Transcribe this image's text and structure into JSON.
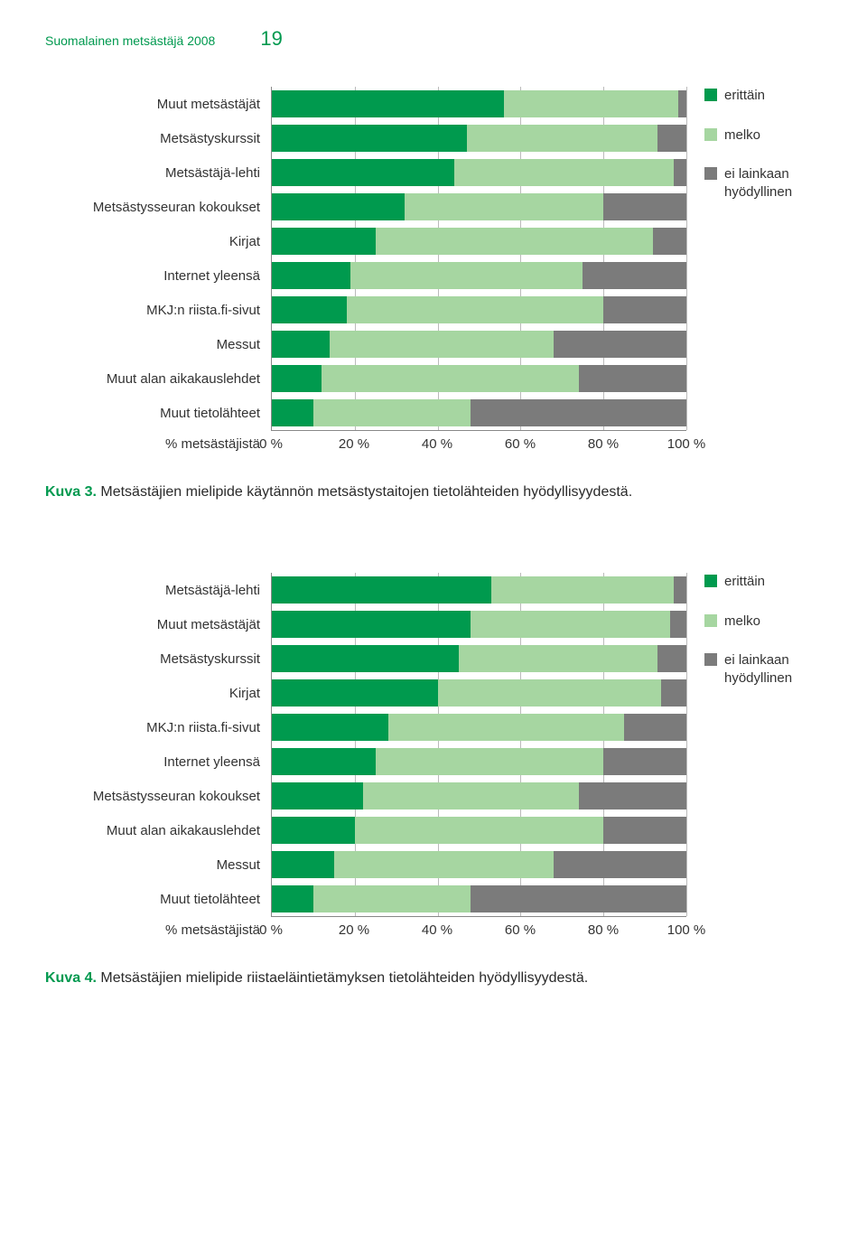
{
  "header": {
    "title": "Suomalainen metsästäjä 2008",
    "page_number": "19"
  },
  "colors": {
    "very": "#009a4e",
    "somewhat": "#a6d6a1",
    "not": "#7b7b7b",
    "gridline": "#bbbbbb",
    "text": "#333333"
  },
  "legend": {
    "items": [
      {
        "key": "very",
        "label": "erittäin"
      },
      {
        "key": "somewhat",
        "label": "melko"
      },
      {
        "key": "not",
        "label": "ei lainkaan hyödyllinen"
      }
    ]
  },
  "axis": {
    "label": "% metsästäjistä",
    "ticks": [
      "0 %",
      "20 %",
      "40 %",
      "60 %",
      "80 %",
      "100 %"
    ],
    "tick_positions": [
      0,
      20,
      40,
      60,
      80,
      100
    ]
  },
  "chart3": {
    "caption_prefix": "Kuva 3.",
    "caption": " Metsästäjien mielipide käytännön metsästystaitojen tietolähteiden hyödyllisyydestä.",
    "rows": [
      {
        "label": "Muut metsästäjät",
        "v": [
          56,
          42,
          2
        ]
      },
      {
        "label": "Metsästyskurssit",
        "v": [
          47,
          46,
          7
        ]
      },
      {
        "label": "Metsästäjä-lehti",
        "v": [
          44,
          53,
          3
        ]
      },
      {
        "label": "Metsästysseuran kokoukset",
        "v": [
          32,
          48,
          20
        ]
      },
      {
        "label": "Kirjat",
        "v": [
          25,
          67,
          8
        ]
      },
      {
        "label": "Internet yleensä",
        "v": [
          19,
          56,
          25
        ]
      },
      {
        "label": "MKJ:n riista.fi-sivut",
        "v": [
          18,
          62,
          20
        ]
      },
      {
        "label": "Messut",
        "v": [
          14,
          54,
          32
        ]
      },
      {
        "label": "Muut alan aikakauslehdet",
        "v": [
          12,
          62,
          26
        ]
      },
      {
        "label": "Muut tietolähteet",
        "v": [
          10,
          38,
          52
        ]
      }
    ]
  },
  "chart4": {
    "caption_prefix": "Kuva 4.",
    "caption": " Metsästäjien mielipide riistaeläintietämyksen tietolähteiden hyödyllisyydestä.",
    "rows": [
      {
        "label": "Metsästäjä-lehti",
        "v": [
          53,
          44,
          3
        ]
      },
      {
        "label": "Muut metsästäjät",
        "v": [
          48,
          48,
          4
        ]
      },
      {
        "label": "Metsästyskurssit",
        "v": [
          45,
          48,
          7
        ]
      },
      {
        "label": "Kirjat",
        "v": [
          40,
          54,
          6
        ]
      },
      {
        "label": "MKJ:n riista.fi-sivut",
        "v": [
          28,
          57,
          15
        ]
      },
      {
        "label": "Internet yleensä",
        "v": [
          25,
          55,
          20
        ]
      },
      {
        "label": "Metsästysseuran kokoukset",
        "v": [
          22,
          52,
          26
        ]
      },
      {
        "label": "Muut alan aikakauslehdet",
        "v": [
          20,
          60,
          20
        ]
      },
      {
        "label": "Messut",
        "v": [
          15,
          53,
          32
        ]
      },
      {
        "label": "Muut tietolähteet",
        "v": [
          10,
          38,
          52
        ]
      }
    ]
  }
}
